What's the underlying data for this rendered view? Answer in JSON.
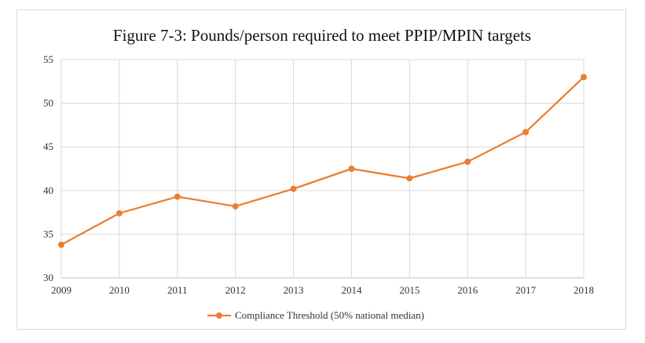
{
  "chart_data": {
    "type": "line",
    "title": "Figure 7-3: Pounds/person required to meet PPIP/MPIN targets",
    "xlabel": "",
    "ylabel": "",
    "categories": [
      "2009",
      "2010",
      "2011",
      "2012",
      "2013",
      "2014",
      "2015",
      "2016",
      "2017",
      "2018"
    ],
    "series": [
      {
        "name": "Compliance Threshold (50% national median)",
        "values": [
          33.8,
          37.4,
          39.3,
          38.2,
          40.2,
          42.5,
          41.4,
          43.3,
          46.7,
          53.0
        ],
        "color": "#ed7d31"
      }
    ],
    "ylim": [
      30,
      55
    ],
    "yticks": [
      "30",
      "35",
      "40",
      "45",
      "50",
      "55"
    ],
    "grid": true,
    "legend_position": "bottom"
  }
}
